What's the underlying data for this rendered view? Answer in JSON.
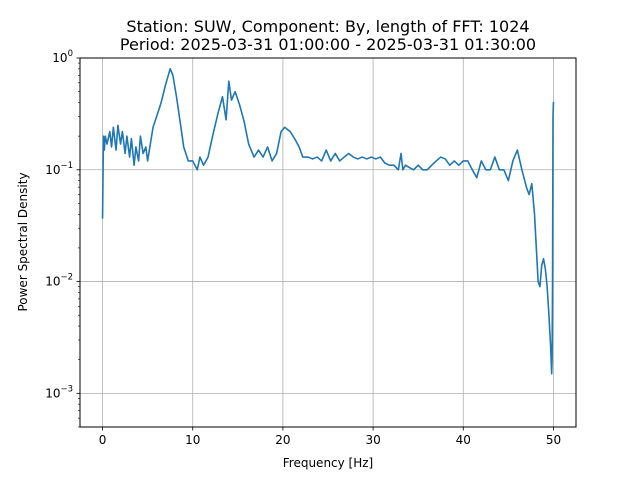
{
  "chart_data": {
    "type": "line",
    "title": "Station: SUW, Component: By, length of FFT: 1024",
    "subtitle": "Period: 2025-03-31 01:00:00 - 2025-03-31 01:30:00",
    "xlabel": "Frequency [Hz]",
    "ylabel": "Power Spectral Density",
    "xlim": [
      -2.5,
      52.5
    ],
    "ylim": [
      0.0005,
      1
    ],
    "yscale": "log",
    "grid": true,
    "line_color": "#1f77b4",
    "x_ticks": [
      {
        "value": 0,
        "label": "0"
      },
      {
        "value": 10,
        "label": "10"
      },
      {
        "value": 20,
        "label": "20"
      },
      {
        "value": 30,
        "label": "30"
      },
      {
        "value": 40,
        "label": "40"
      },
      {
        "value": 50,
        "label": "50"
      }
    ],
    "y_ticks": [
      {
        "value": 1,
        "base": "10",
        "exp": "0"
      },
      {
        "value": 0.1,
        "base": "10",
        "exp": "−1"
      },
      {
        "value": 0.01,
        "base": "10",
        "exp": "−2"
      },
      {
        "value": 0.001,
        "base": "10",
        "exp": "−3"
      }
    ],
    "x": [
      0.0,
      0.1,
      0.2,
      0.3,
      0.5,
      0.8,
      1.0,
      1.2,
      1.5,
      1.7,
      2.0,
      2.2,
      2.5,
      2.7,
      3.0,
      3.2,
      3.5,
      3.7,
      4.0,
      4.2,
      4.5,
      4.8,
      5.0,
      5.3,
      5.6,
      6.0,
      6.5,
      7.0,
      7.5,
      7.8,
      8.2,
      8.6,
      9.0,
      9.5,
      10.0,
      10.5,
      10.8,
      11.2,
      11.7,
      12.2,
      12.8,
      13.3,
      13.7,
      14.0,
      14.3,
      14.7,
      15.2,
      15.7,
      16.2,
      16.8,
      17.3,
      17.8,
      18.3,
      18.8,
      19.3,
      19.8,
      20.2,
      20.8,
      21.3,
      21.8,
      22.2,
      22.8,
      23.3,
      23.8,
      24.3,
      24.8,
      25.3,
      25.8,
      26.3,
      26.8,
      27.3,
      27.8,
      28.3,
      28.8,
      29.3,
      29.8,
      30.3,
      30.8,
      31.3,
      31.8,
      32.3,
      32.8,
      33.1,
      33.3,
      33.6,
      34.0,
      34.5,
      35.0,
      35.5,
      36.0,
      36.5,
      37.0,
      37.5,
      38.0,
      38.5,
      39.0,
      39.5,
      40.0,
      40.5,
      41.0,
      41.5,
      42.0,
      42.5,
      43.0,
      43.5,
      44.0,
      44.5,
      45.0,
      45.5,
      46.0,
      46.5,
      47.0,
      47.3,
      47.6,
      47.9,
      48.1,
      48.3,
      48.5,
      48.7,
      48.9,
      49.1,
      49.3,
      49.5,
      49.7,
      49.8,
      49.85,
      49.9,
      49.95,
      50.0
    ],
    "values": [
      0.037,
      0.2,
      0.15,
      0.2,
      0.17,
      0.22,
      0.16,
      0.24,
      0.15,
      0.25,
      0.17,
      0.22,
      0.14,
      0.2,
      0.13,
      0.19,
      0.11,
      0.16,
      0.12,
      0.2,
      0.14,
      0.16,
      0.12,
      0.17,
      0.24,
      0.3,
      0.4,
      0.58,
      0.8,
      0.7,
      0.45,
      0.27,
      0.16,
      0.12,
      0.12,
      0.1,
      0.13,
      0.11,
      0.13,
      0.2,
      0.32,
      0.45,
      0.28,
      0.62,
      0.42,
      0.5,
      0.38,
      0.27,
      0.17,
      0.13,
      0.15,
      0.13,
      0.16,
      0.12,
      0.14,
      0.22,
      0.24,
      0.22,
      0.19,
      0.16,
      0.13,
      0.13,
      0.125,
      0.13,
      0.12,
      0.15,
      0.12,
      0.14,
      0.12,
      0.13,
      0.14,
      0.13,
      0.125,
      0.13,
      0.125,
      0.13,
      0.125,
      0.13,
      0.115,
      0.11,
      0.11,
      0.1,
      0.14,
      0.1,
      0.11,
      0.105,
      0.1,
      0.11,
      0.1,
      0.1,
      0.11,
      0.12,
      0.13,
      0.125,
      0.11,
      0.12,
      0.11,
      0.12,
      0.12,
      0.1,
      0.085,
      0.12,
      0.1,
      0.1,
      0.13,
      0.1,
      0.1,
      0.08,
      0.12,
      0.15,
      0.1,
      0.07,
      0.06,
      0.075,
      0.04,
      0.02,
      0.01,
      0.009,
      0.014,
      0.016,
      0.013,
      0.009,
      0.005,
      0.0025,
      0.0015,
      0.002,
      0.01,
      0.3,
      0.4
    ]
  }
}
